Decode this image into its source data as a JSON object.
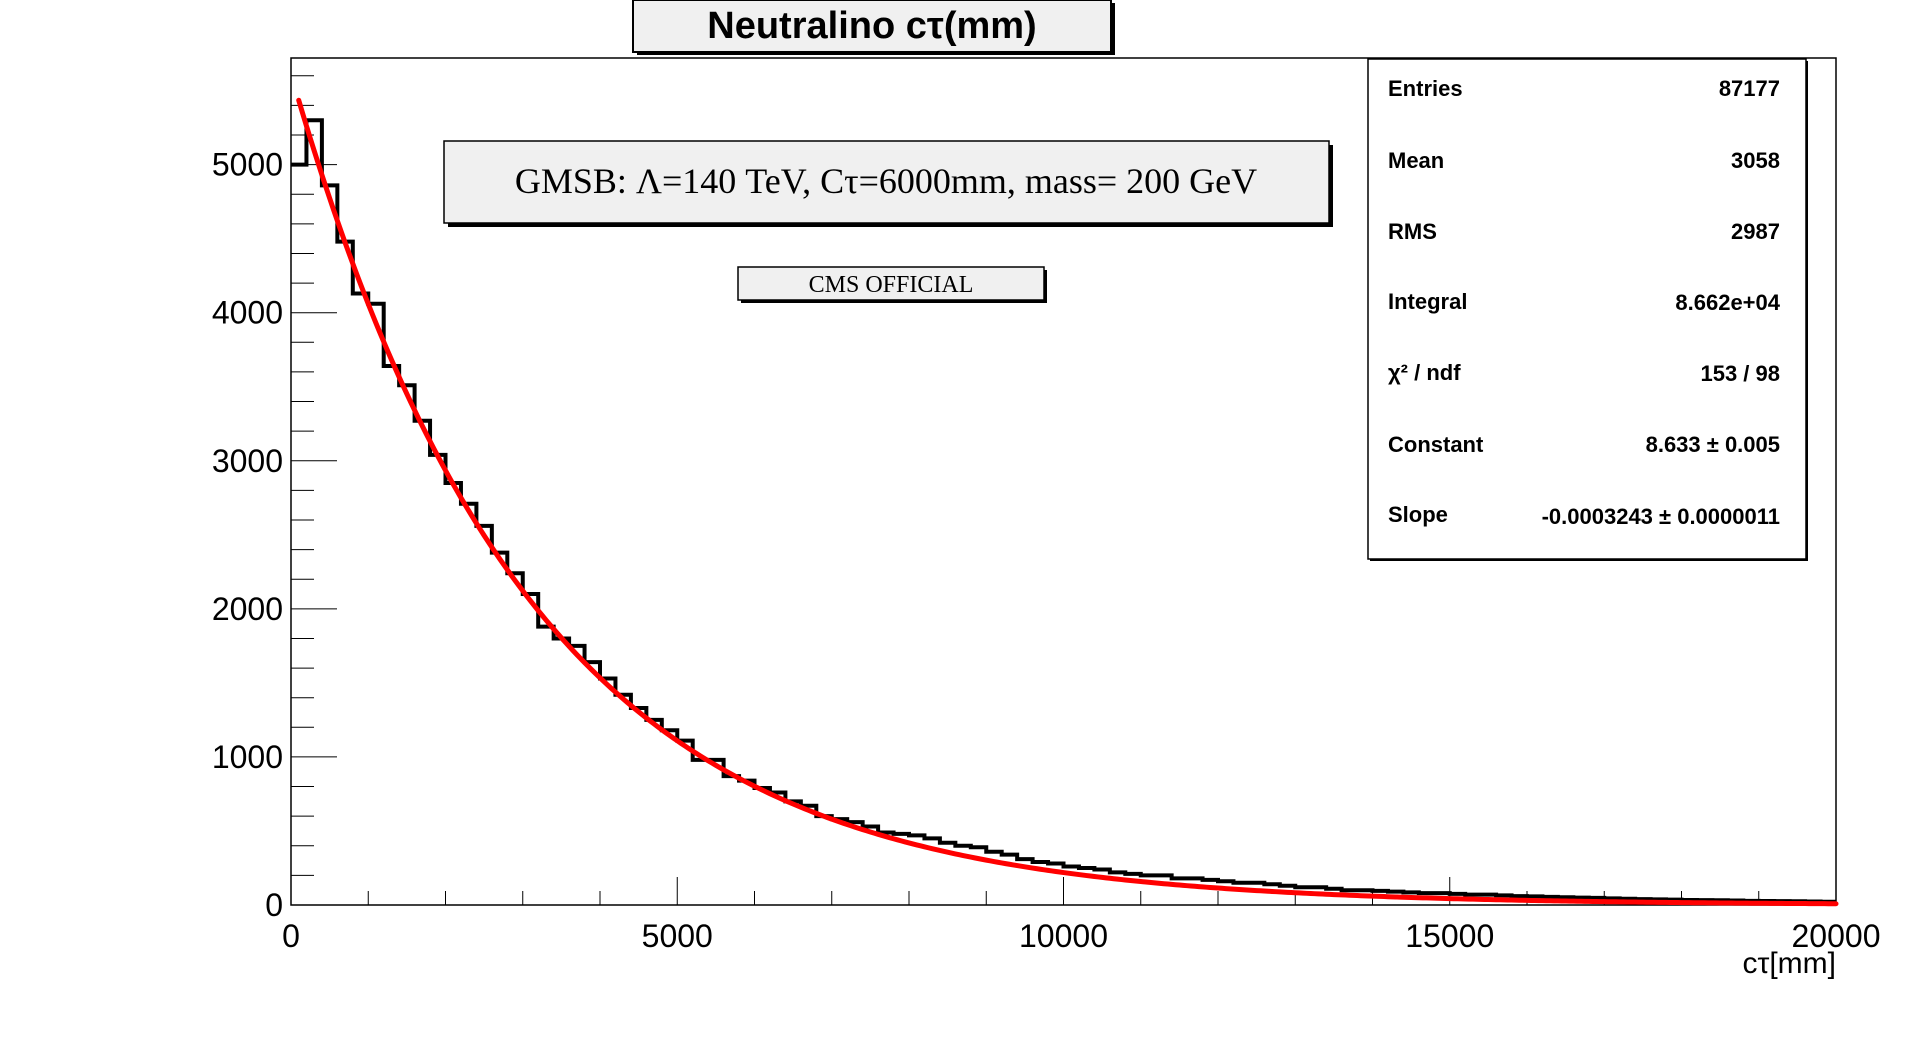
{
  "title": "Neutralino cτ(mm)",
  "chart_data": {
    "type": "histogram",
    "title": "Neutralino cτ(mm)",
    "xlabel": "cτ[mm]",
    "ylabel": "",
    "xlim": [
      0,
      20000
    ],
    "ylim": [
      0,
      5720
    ],
    "bin_width": 200,
    "x_tick_labels": [
      "0",
      "5000",
      "10000",
      "15000",
      "20000"
    ],
    "y_tick_labels": [
      "0",
      "1000",
      "2000",
      "3000",
      "4000",
      "5000"
    ],
    "histogram_series": {
      "name": "",
      "color": "#000000",
      "values": [
        5000,
        5300,
        4860,
        4480,
        4130,
        4060,
        3640,
        3510,
        3270,
        3040,
        2850,
        2710,
        2560,
        2380,
        2240,
        2100,
        1880,
        1800,
        1750,
        1640,
        1530,
        1420,
        1330,
        1250,
        1180,
        1110,
        980,
        980,
        870,
        840,
        790,
        760,
        700,
        670,
        600,
        580,
        560,
        530,
        490,
        480,
        470,
        450,
        420,
        400,
        390,
        360,
        340,
        310,
        290,
        280,
        260,
        250,
        240,
        220,
        210,
        200,
        200,
        180,
        180,
        170,
        160,
        150,
        150,
        140,
        130,
        120,
        120,
        110,
        100,
        100,
        95,
        90,
        85,
        80,
        80,
        75,
        70,
        70,
        65,
        60,
        58,
        55,
        52,
        50,
        48,
        45,
        42,
        40,
        38,
        36,
        34,
        33,
        32,
        30,
        28,
        27,
        26,
        25,
        24,
        22
      ]
    },
    "fit_series": {
      "name": "",
      "color": "#ff0000",
      "function": "exp(Constant + Slope*x)",
      "constant": 8.633,
      "slope": -0.0003243,
      "x_start": 100,
      "x_end": 20000
    }
  },
  "stats_box": {
    "rows": [
      {
        "label": "Entries",
        "value": "87177"
      },
      {
        "label": "Mean",
        "value": "3058"
      },
      {
        "label": "RMS",
        "value": "2987"
      },
      {
        "label": "Integral",
        "value": "8.662e+04"
      },
      {
        "label": "χ² / ndf",
        "value": "153 / 98"
      },
      {
        "label": "Constant",
        "value": "8.633  ± 0.005"
      },
      {
        "label": "Slope",
        "value": "-0.0003243  ± 0.0000011"
      }
    ]
  },
  "annotations": {
    "model_label": "GMSB: Λ=140 TeV, Cτ=6000mm, mass= 200 GeV",
    "official_label": "CMS OFFICIAL"
  }
}
